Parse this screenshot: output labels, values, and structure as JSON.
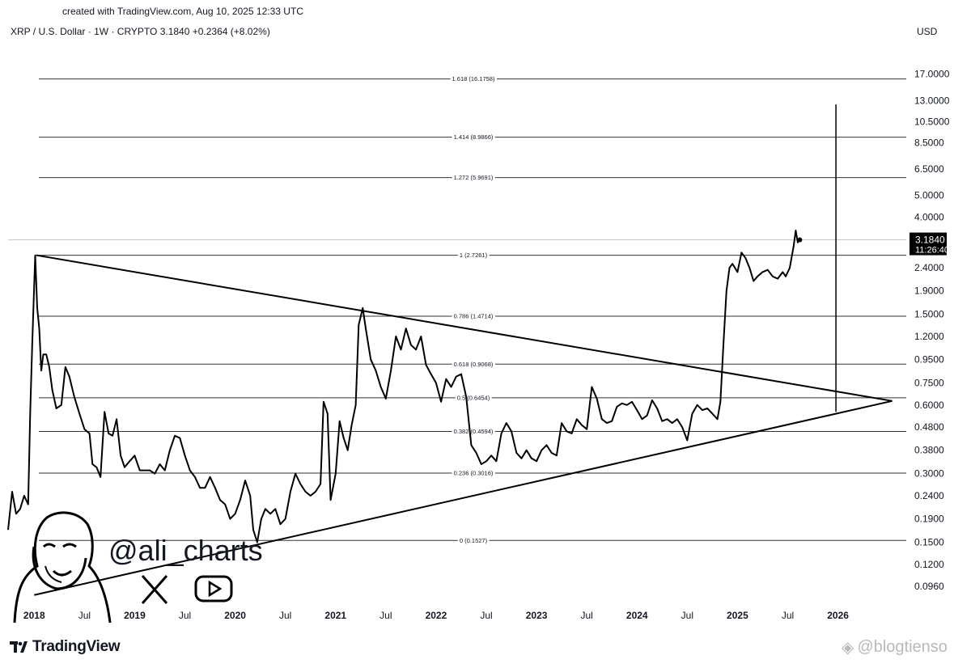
{
  "header": {
    "created": "created with TradingView.com, Aug 10, 2025 12:33 UTC",
    "symbol_line": "XRP / U.S. Dollar · 1W · CRYPTO  3.1840  +0.2364 (+8.02%)",
    "currency": "USD"
  },
  "chart_data": {
    "type": "line",
    "title": "XRP / U.S. Dollar · 1W · CRYPTO",
    "y_scale": "log",
    "ylim": [
      0.085,
      22
    ],
    "y_ticks": [
      "17.0000",
      "13.0000",
      "10.5000",
      "8.5000",
      "6.5000",
      "5.0000",
      "4.0000",
      "2.4000",
      "1.9000",
      "1.5000",
      "1.2000",
      "0.9500",
      "0.7500",
      "0.6000",
      "0.4800",
      "0.3800",
      "0.3000",
      "0.2400",
      "0.1900",
      "0.1500",
      "0.1200",
      "0.0960"
    ],
    "x_ticks": [
      {
        "label": "2018",
        "t": 2018.0,
        "bold": true
      },
      {
        "label": "Jul",
        "t": 2018.5,
        "bold": false
      },
      {
        "label": "2019",
        "t": 2019.0,
        "bold": true
      },
      {
        "label": "Jul",
        "t": 2019.5,
        "bold": false
      },
      {
        "label": "2020",
        "t": 2020.0,
        "bold": true
      },
      {
        "label": "Jul",
        "t": 2020.5,
        "bold": false
      },
      {
        "label": "2021",
        "t": 2021.0,
        "bold": true
      },
      {
        "label": "Jul",
        "t": 2021.5,
        "bold": false
      },
      {
        "label": "2022",
        "t": 2022.0,
        "bold": true
      },
      {
        "label": "Jul",
        "t": 2022.5,
        "bold": false
      },
      {
        "label": "2023",
        "t": 2023.0,
        "bold": true
      },
      {
        "label": "Jul",
        "t": 2023.5,
        "bold": false
      },
      {
        "label": "2024",
        "t": 2024.0,
        "bold": true
      },
      {
        "label": "Jul",
        "t": 2024.5,
        "bold": false
      },
      {
        "label": "2025",
        "t": 2025.0,
        "bold": true
      },
      {
        "label": "Jul",
        "t": 2025.5,
        "bold": false
      },
      {
        "label": "2026",
        "t": 2026.0,
        "bold": true
      }
    ],
    "xlim": [
      2017.74,
      2026.68
    ],
    "fib_levels": [
      {
        "label": "1.618 (16.1758)",
        "value": 16.1758
      },
      {
        "label": "1.414 (8.9866)",
        "value": 8.9866
      },
      {
        "label": "1.272 (5.9691)",
        "value": 5.9691
      },
      {
        "label": "1 (2.7261)",
        "value": 2.7261
      },
      {
        "label": "0.786 (1.4714)",
        "value": 1.4714
      },
      {
        "label": "0.618 (0.9068)",
        "value": 0.9068
      },
      {
        "label": "0.5 (0.6454)",
        "value": 0.6454
      },
      {
        "label": "0.382 (0.4594)",
        "value": 0.4594
      },
      {
        "label": "0.236 (0.3016)",
        "value": 0.3016
      },
      {
        "label": "0 (0.1527)",
        "value": 0.1527
      }
    ],
    "triangle": {
      "upper": [
        [
          2018.02,
          2.7261
        ],
        [
          2026.54,
          0.625
        ]
      ],
      "lower": [
        [
          2018.0,
          0.088
        ],
        [
          2026.54,
          0.625
        ]
      ]
    },
    "vertical_marker": {
      "t": 2025.98,
      "from": 0.56,
      "to": 12.5
    },
    "current_price": {
      "label": "3.1840",
      "value": 3.184,
      "countdown": "11:26:40"
    },
    "series": [
      {
        "points": [
          [
            2017.74,
            0.17
          ],
          [
            2017.78,
            0.25
          ],
          [
            2017.82,
            0.2
          ],
          [
            2017.86,
            0.21
          ],
          [
            2017.9,
            0.24
          ],
          [
            2017.94,
            0.22
          ],
          [
            2017.96,
            0.55
          ],
          [
            2017.98,
            1.1
          ],
          [
            2018.01,
            2.72
          ],
          [
            2018.03,
            1.6
          ],
          [
            2018.05,
            1.3
          ],
          [
            2018.07,
            0.85
          ],
          [
            2018.09,
            1.0
          ],
          [
            2018.12,
            1.0
          ],
          [
            2018.15,
            0.88
          ],
          [
            2018.18,
            0.7
          ],
          [
            2018.22,
            0.58
          ],
          [
            2018.27,
            0.6
          ],
          [
            2018.31,
            0.88
          ],
          [
            2018.35,
            0.8
          ],
          [
            2018.4,
            0.65
          ],
          [
            2018.45,
            0.55
          ],
          [
            2018.5,
            0.47
          ],
          [
            2018.55,
            0.45
          ],
          [
            2018.58,
            0.33
          ],
          [
            2018.62,
            0.32
          ],
          [
            2018.66,
            0.29
          ],
          [
            2018.7,
            0.56
          ],
          [
            2018.74,
            0.45
          ],
          [
            2018.78,
            0.44
          ],
          [
            2018.82,
            0.52
          ],
          [
            2018.86,
            0.36
          ],
          [
            2018.9,
            0.32
          ],
          [
            2018.95,
            0.34
          ],
          [
            2019.0,
            0.36
          ],
          [
            2019.05,
            0.31
          ],
          [
            2019.1,
            0.31
          ],
          [
            2019.15,
            0.31
          ],
          [
            2019.2,
            0.3
          ],
          [
            2019.25,
            0.33
          ],
          [
            2019.3,
            0.31
          ],
          [
            2019.35,
            0.38
          ],
          [
            2019.4,
            0.44
          ],
          [
            2019.45,
            0.43
          ],
          [
            2019.5,
            0.36
          ],
          [
            2019.55,
            0.31
          ],
          [
            2019.6,
            0.29
          ],
          [
            2019.65,
            0.26
          ],
          [
            2019.7,
            0.26
          ],
          [
            2019.75,
            0.29
          ],
          [
            2019.8,
            0.26
          ],
          [
            2019.85,
            0.23
          ],
          [
            2019.9,
            0.22
          ],
          [
            2019.95,
            0.19
          ],
          [
            2020.0,
            0.2
          ],
          [
            2020.05,
            0.23
          ],
          [
            2020.1,
            0.28
          ],
          [
            2020.15,
            0.24
          ],
          [
            2020.18,
            0.17
          ],
          [
            2020.22,
            0.15
          ],
          [
            2020.26,
            0.19
          ],
          [
            2020.3,
            0.21
          ],
          [
            2020.35,
            0.2
          ],
          [
            2020.4,
            0.21
          ],
          [
            2020.45,
            0.18
          ],
          [
            2020.5,
            0.19
          ],
          [
            2020.55,
            0.25
          ],
          [
            2020.6,
            0.3
          ],
          [
            2020.65,
            0.27
          ],
          [
            2020.7,
            0.25
          ],
          [
            2020.75,
            0.24
          ],
          [
            2020.8,
            0.25
          ],
          [
            2020.85,
            0.27
          ],
          [
            2020.88,
            0.62
          ],
          [
            2020.92,
            0.55
          ],
          [
            2020.95,
            0.23
          ],
          [
            2021.0,
            0.3
          ],
          [
            2021.04,
            0.51
          ],
          [
            2021.08,
            0.43
          ],
          [
            2021.12,
            0.38
          ],
          [
            2021.16,
            0.49
          ],
          [
            2021.2,
            0.6
          ],
          [
            2021.23,
            1.35
          ],
          [
            2021.27,
            1.6
          ],
          [
            2021.3,
            1.3
          ],
          [
            2021.35,
            0.95
          ],
          [
            2021.4,
            0.85
          ],
          [
            2021.45,
            0.72
          ],
          [
            2021.5,
            0.64
          ],
          [
            2021.55,
            0.85
          ],
          [
            2021.6,
            1.2
          ],
          [
            2021.65,
            1.05
          ],
          [
            2021.7,
            1.3
          ],
          [
            2021.75,
            1.1
          ],
          [
            2021.8,
            1.05
          ],
          [
            2021.85,
            1.2
          ],
          [
            2021.9,
            0.9
          ],
          [
            2021.95,
            0.82
          ],
          [
            2022.0,
            0.75
          ],
          [
            2022.05,
            0.62
          ],
          [
            2022.1,
            0.78
          ],
          [
            2022.15,
            0.72
          ],
          [
            2022.2,
            0.8
          ],
          [
            2022.25,
            0.82
          ],
          [
            2022.3,
            0.65
          ],
          [
            2022.35,
            0.4
          ],
          [
            2022.4,
            0.37
          ],
          [
            2022.45,
            0.33
          ],
          [
            2022.5,
            0.34
          ],
          [
            2022.55,
            0.36
          ],
          [
            2022.6,
            0.34
          ],
          [
            2022.65,
            0.45
          ],
          [
            2022.7,
            0.5
          ],
          [
            2022.75,
            0.46
          ],
          [
            2022.8,
            0.37
          ],
          [
            2022.85,
            0.35
          ],
          [
            2022.9,
            0.38
          ],
          [
            2022.95,
            0.35
          ],
          [
            2023.0,
            0.34
          ],
          [
            2023.05,
            0.38
          ],
          [
            2023.1,
            0.4
          ],
          [
            2023.15,
            0.37
          ],
          [
            2023.2,
            0.36
          ],
          [
            2023.25,
            0.5
          ],
          [
            2023.3,
            0.46
          ],
          [
            2023.35,
            0.45
          ],
          [
            2023.4,
            0.52
          ],
          [
            2023.45,
            0.49
          ],
          [
            2023.5,
            0.47
          ],
          [
            2023.55,
            0.72
          ],
          [
            2023.6,
            0.64
          ],
          [
            2023.65,
            0.52
          ],
          [
            2023.7,
            0.5
          ],
          [
            2023.75,
            0.51
          ],
          [
            2023.8,
            0.59
          ],
          [
            2023.85,
            0.61
          ],
          [
            2023.9,
            0.6
          ],
          [
            2023.95,
            0.62
          ],
          [
            2024.0,
            0.57
          ],
          [
            2024.05,
            0.52
          ],
          [
            2024.1,
            0.54
          ],
          [
            2024.15,
            0.63
          ],
          [
            2024.2,
            0.58
          ],
          [
            2024.25,
            0.51
          ],
          [
            2024.3,
            0.52
          ],
          [
            2024.35,
            0.5
          ],
          [
            2024.4,
            0.52
          ],
          [
            2024.45,
            0.48
          ],
          [
            2024.5,
            0.42
          ],
          [
            2024.55,
            0.55
          ],
          [
            2024.6,
            0.6
          ],
          [
            2024.65,
            0.57
          ],
          [
            2024.7,
            0.58
          ],
          [
            2024.75,
            0.55
          ],
          [
            2024.8,
            0.52
          ],
          [
            2024.83,
            0.62
          ],
          [
            2024.86,
            1.1
          ],
          [
            2024.89,
            1.9
          ],
          [
            2024.92,
            2.4
          ],
          [
            2024.95,
            2.5
          ],
          [
            2025.0,
            2.3
          ],
          [
            2025.04,
            2.8
          ],
          [
            2025.08,
            2.65
          ],
          [
            2025.12,
            2.4
          ],
          [
            2025.16,
            2.1
          ],
          [
            2025.2,
            2.2
          ],
          [
            2025.25,
            2.3
          ],
          [
            2025.3,
            2.35
          ],
          [
            2025.35,
            2.2
          ],
          [
            2025.4,
            2.15
          ],
          [
            2025.45,
            2.3
          ],
          [
            2025.48,
            2.2
          ],
          [
            2025.52,
            2.4
          ],
          [
            2025.56,
            3.0
          ],
          [
            2025.58,
            3.5
          ],
          [
            2025.6,
            3.1
          ],
          [
            2025.62,
            3.184
          ]
        ]
      }
    ]
  },
  "overlay": {
    "handle": "@ali_charts",
    "logo_text": "TradingView",
    "watermark": "@blogtienso"
  },
  "colors": {
    "line": "#000000",
    "grid": "#000000",
    "price_tag_bg": "#000000",
    "watermark": "#b9b9b9"
  }
}
